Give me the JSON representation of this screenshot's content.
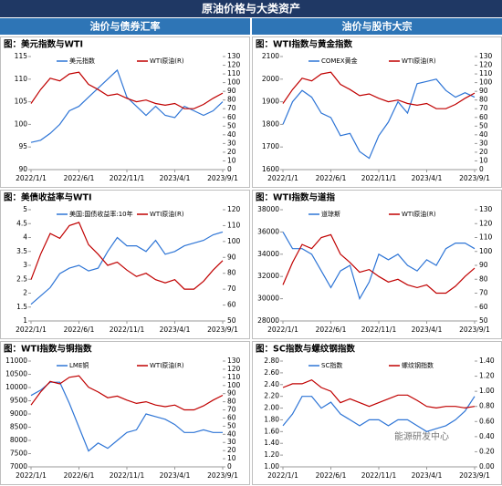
{
  "header": {
    "title": "原油价格与大类资产",
    "left": "油价与债券汇率",
    "right": "油价与股市大宗"
  },
  "watermark": "能源研发中心",
  "chart_data": [
    {
      "type": "line",
      "title": "图：美元指数与WTI",
      "categories": [
        "2022/1/1",
        null,
        null,
        null,
        null,
        "2022/6/1",
        null,
        null,
        null,
        null,
        "2022/11/1",
        null,
        null,
        null,
        null,
        "2023/4/1",
        null,
        null,
        null,
        null,
        "2023/9/1"
      ],
      "series": [
        {
          "name": "美元指数",
          "color": "#2e75d6",
          "values": [
            96,
            96.5,
            98,
            100,
            103,
            104,
            106,
            108,
            110,
            112,
            106,
            104,
            102,
            104,
            102,
            101.5,
            104,
            103,
            102,
            103,
            105
          ]
        },
        {
          "name": "WTI原油(R)",
          "color": "#c00000",
          "axis": "y2",
          "values": [
            76,
            92,
            105,
            102,
            110,
            112,
            98,
            92,
            85,
            87,
            82,
            78,
            80,
            76,
            74,
            76,
            70,
            70,
            75,
            82,
            88
          ]
        }
      ],
      "ylim": [
        90,
        115
      ],
      "yticks": [
        90,
        95,
        100,
        105,
        110,
        115
      ],
      "y2lim": [
        0,
        130
      ],
      "y2ticks": [
        0,
        10,
        20,
        30,
        40,
        50,
        60,
        70,
        80,
        90,
        100,
        110,
        120,
        130
      ]
    },
    {
      "type": "line",
      "title": "图：WTI指数与黄金指数",
      "categories": [
        "2022/1/1",
        null,
        null,
        null,
        null,
        "2022/6/1",
        null,
        null,
        null,
        null,
        "2022/11/1",
        null,
        null,
        null,
        null,
        "2023/4/1",
        null,
        null,
        null,
        null,
        "2023/9/1"
      ],
      "series": [
        {
          "name": "COMEX黄金",
          "color": "#2e75d6",
          "values": [
            1800,
            1900,
            1950,
            1920,
            1850,
            1830,
            1750,
            1760,
            1680,
            1650,
            1750,
            1810,
            1900,
            1850,
            1980,
            1990,
            2000,
            1950,
            1920,
            1940,
            1920
          ]
        },
        {
          "name": "WTI原油(R)",
          "color": "#c00000",
          "axis": "y2",
          "values": [
            76,
            92,
            105,
            102,
            110,
            112,
            98,
            92,
            85,
            87,
            82,
            78,
            80,
            76,
            74,
            76,
            70,
            70,
            75,
            82,
            88
          ]
        }
      ],
      "ylim": [
        1600,
        2100
      ],
      "yticks": [
        1600,
        1700,
        1800,
        1900,
        2000,
        2100
      ],
      "y2lim": [
        0,
        130
      ],
      "y2ticks": [
        0,
        10,
        20,
        30,
        40,
        50,
        60,
        70,
        80,
        90,
        100,
        110,
        120,
        130
      ]
    },
    {
      "type": "line",
      "title": "图：美债收益率与WTI",
      "categories": [
        "2022/1/1",
        null,
        null,
        null,
        null,
        "2022/6/1",
        null,
        null,
        null,
        null,
        "2022/11/1",
        null,
        null,
        null,
        null,
        "2023/4/1",
        null,
        null,
        null,
        null,
        "2023/9/1"
      ],
      "series": [
        {
          "name": "美国:国债收益率:10年",
          "color": "#2e75d6",
          "values": [
            1.6,
            1.9,
            2.2,
            2.7,
            2.9,
            3.0,
            2.8,
            2.9,
            3.5,
            4.0,
            3.7,
            3.7,
            3.5,
            3.9,
            3.4,
            3.5,
            3.7,
            3.8,
            3.9,
            4.1,
            4.2
          ]
        },
        {
          "name": "WTI原油(R)",
          "color": "#c00000",
          "axis": "y2",
          "values": [
            76,
            92,
            105,
            102,
            110,
            112,
            98,
            92,
            85,
            87,
            82,
            78,
            80,
            76,
            74,
            76,
            70,
            70,
            75,
            82,
            88
          ]
        }
      ],
      "ylim": [
        1,
        5
      ],
      "yticks": [
        1,
        1.5,
        2,
        2.5,
        3,
        3.5,
        4,
        4.5,
        5
      ],
      "y2lim": [
        50,
        120
      ],
      "y2ticks": [
        50,
        60,
        70,
        80,
        90,
        100,
        110,
        120
      ]
    },
    {
      "type": "line",
      "title": "图：WTI指数与道指",
      "categories": [
        "2022/1/1",
        null,
        null,
        null,
        null,
        "2022/6/1",
        null,
        null,
        null,
        null,
        "2022/11/1",
        null,
        null,
        null,
        null,
        "2023/4/1",
        null,
        null,
        null,
        null,
        "2023/9/1"
      ],
      "series": [
        {
          "name": "道琼斯",
          "color": "#2e75d6",
          "values": [
            36000,
            34500,
            34500,
            34000,
            32500,
            31000,
            32500,
            33000,
            30000,
            31500,
            34000,
            33500,
            34000,
            33000,
            32500,
            33500,
            33000,
            34500,
            35000,
            35000,
            34500
          ]
        },
        {
          "name": "WTI原油(R)",
          "color": "#c00000",
          "axis": "y2",
          "values": [
            76,
            92,
            105,
            102,
            110,
            112,
            98,
            92,
            85,
            87,
            82,
            78,
            80,
            76,
            74,
            76,
            70,
            70,
            75,
            82,
            88
          ]
        }
      ],
      "ylim": [
        28000,
        38000
      ],
      "yticks": [
        28000,
        30000,
        32000,
        34000,
        36000,
        38000
      ],
      "y2lim": [
        50,
        130
      ],
      "y2ticks": [
        50,
        60,
        70,
        80,
        90,
        100,
        110,
        120,
        130
      ]
    },
    {
      "type": "line",
      "title": "图：WTI指数与铜指数",
      "categories": [
        "2022/1/1",
        null,
        null,
        null,
        null,
        "2022/6/1",
        null,
        null,
        null,
        null,
        "2022/11/1",
        null,
        null,
        null,
        null,
        "2023/4/1",
        null,
        null,
        null,
        null,
        "2023/9/1"
      ],
      "series": [
        {
          "name": "LME铜",
          "color": "#2e75d6",
          "values": [
            9700,
            9900,
            10200,
            10200,
            9400,
            8500,
            7600,
            7900,
            7700,
            8000,
            8300,
            8400,
            9000,
            8900,
            8800,
            8600,
            8300,
            8300,
            8400,
            8300,
            8300
          ]
        },
        {
          "name": "WTI原油(R)",
          "color": "#c00000",
          "axis": "y2",
          "values": [
            76,
            92,
            105,
            102,
            110,
            112,
            98,
            92,
            85,
            87,
            82,
            78,
            80,
            76,
            74,
            76,
            70,
            70,
            75,
            82,
            88
          ]
        }
      ],
      "ylim": [
        7000,
        11000
      ],
      "yticks": [
        7000,
        7500,
        8000,
        8500,
        9000,
        9500,
        10000,
        10500,
        11000
      ],
      "y2lim": [
        0,
        130
      ],
      "y2ticks": [
        0,
        10,
        20,
        30,
        40,
        50,
        60,
        70,
        80,
        90,
        100,
        110,
        120,
        130
      ]
    },
    {
      "type": "line",
      "title": "图：SC指数与螺纹钢指数",
      "categories": [
        "2022/1/1",
        null,
        null,
        null,
        null,
        "2022/6/1",
        null,
        null,
        null,
        null,
        "2022/11/1",
        null,
        null,
        null,
        null,
        "2023/4/1",
        null,
        null,
        null,
        null,
        "2023/9/1"
      ],
      "series": [
        {
          "name": "SC指数",
          "color": "#2e75d6",
          "values": [
            1.7,
            1.9,
            2.2,
            2.2,
            2.0,
            2.1,
            1.9,
            1.8,
            1.7,
            1.8,
            1.8,
            1.7,
            1.8,
            1.8,
            1.7,
            1.6,
            1.65,
            1.7,
            1.8,
            1.95,
            2.2
          ]
        },
        {
          "name": "螺纹钢指数",
          "color": "#c00000",
          "axis": "y2",
          "values": [
            1.05,
            1.1,
            1.1,
            1.15,
            1.05,
            1.0,
            0.85,
            0.9,
            0.85,
            0.8,
            0.85,
            0.9,
            0.95,
            0.95,
            0.88,
            0.8,
            0.78,
            0.8,
            0.8,
            0.78,
            0.8
          ]
        }
      ],
      "ylim": [
        1,
        2.8
      ],
      "yticks": [
        {
          "value": 1,
          "label": "1.00"
        },
        {
          "value": 1.2,
          "label": "1.20"
        },
        {
          "value": 1.4,
          "label": "1.40"
        },
        {
          "value": 1.6,
          "label": "1.60"
        },
        {
          "value": 1.8,
          "label": "1.80"
        },
        {
          "value": 2,
          "label": "2.00"
        },
        {
          "value": 2.2,
          "label": "2.20"
        },
        {
          "value": 2.4,
          "label": "2.40"
        },
        {
          "value": 2.6,
          "label": "2.60"
        },
        {
          "value": 2.8,
          "label": "2.80"
        }
      ],
      "y2lim": [
        0,
        1.4
      ],
      "y2ticks": [
        {
          "value": 0,
          "label": "0.00"
        },
        {
          "value": 0.2,
          "label": "0.20"
        },
        {
          "value": 0.4,
          "label": "0.40"
        },
        {
          "value": 0.6,
          "label": "0.60"
        },
        {
          "value": 0.8,
          "label": "0.80"
        },
        {
          "value": 1,
          "label": "1.00"
        },
        {
          "value": 1.2,
          "label": "1.20"
        },
        {
          "value": 1.4,
          "label": "1.40"
        }
      ]
    }
  ]
}
